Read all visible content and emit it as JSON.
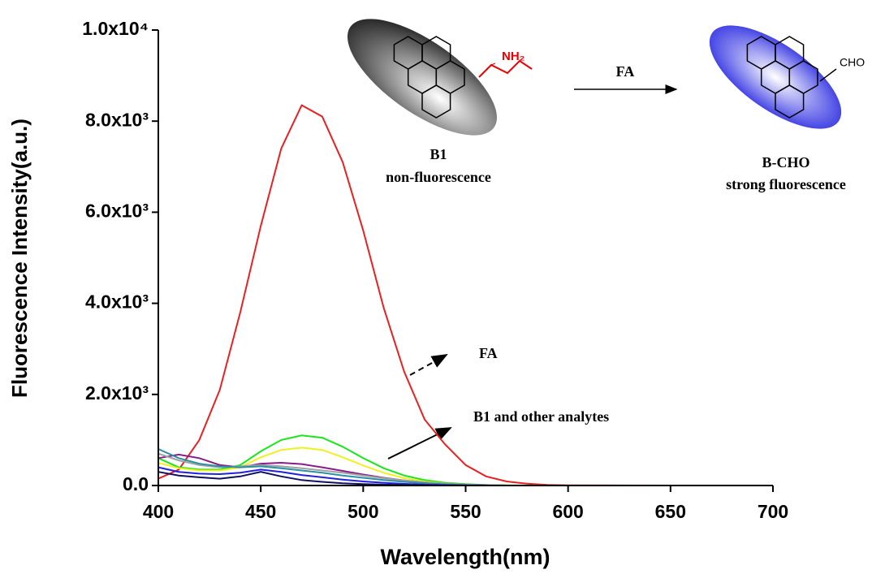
{
  "chart_data": {
    "type": "line",
    "x_label": "Wavelength(nm)",
    "y_label": "Fluorescence Intensity(a.u.)",
    "x": [
      400,
      410,
      420,
      430,
      440,
      450,
      460,
      470,
      480,
      490,
      500,
      510,
      520,
      530,
      540,
      550,
      560,
      570,
      580,
      590,
      600,
      650,
      700
    ],
    "series": [
      {
        "color": "#e8201f",
        "values": [
          150,
          350,
          1000,
          2100,
          3800,
          5700,
          7400,
          8350,
          8100,
          7100,
          5600,
          3900,
          2500,
          1450,
          900,
          450,
          200,
          90,
          40,
          15,
          5,
          0,
          0
        ]
      },
      {
        "color": "#19e619",
        "values": [
          600,
          400,
          350,
          350,
          450,
          750,
          1000,
          1100,
          1050,
          850,
          600,
          380,
          220,
          120,
          60,
          30,
          10,
          5,
          0,
          0,
          0,
          0,
          0
        ]
      },
      {
        "color": "#f0f020",
        "values": [
          500,
          380,
          330,
          330,
          400,
          620,
          780,
          830,
          780,
          620,
          440,
          280,
          160,
          90,
          45,
          20,
          8,
          0,
          0,
          0,
          0,
          0,
          0
        ]
      },
      {
        "color": "#8b1a8b",
        "values": [
          600,
          680,
          600,
          450,
          400,
          480,
          500,
          470,
          400,
          320,
          240,
          170,
          110,
          70,
          40,
          20,
          10,
          0,
          0,
          0,
          0,
          0,
          0
        ]
      },
      {
        "color": "#a0a0a0",
        "values": [
          700,
          550,
          450,
          400,
          420,
          450,
          420,
          380,
          330,
          280,
          220,
          160,
          110,
          70,
          40,
          20,
          10,
          0,
          0,
          0,
          0,
          0,
          0
        ]
      },
      {
        "color": "#2b8fa8",
        "values": [
          800,
          600,
          480,
          420,
          400,
          420,
          380,
          330,
          280,
          220,
          170,
          120,
          80,
          50,
          25,
          10,
          5,
          0,
          0,
          0,
          0,
          0,
          0
        ]
      },
      {
        "color": "#2020e0",
        "values": [
          400,
          300,
          260,
          250,
          280,
          350,
          300,
          230,
          180,
          130,
          90,
          60,
          35,
          20,
          10,
          5,
          0,
          0,
          0,
          0,
          0,
          0,
          0
        ]
      },
      {
        "color": "#101060",
        "values": [
          300,
          220,
          180,
          150,
          200,
          300,
          200,
          120,
          80,
          50,
          30,
          20,
          10,
          5,
          0,
          0,
          0,
          0,
          0,
          0,
          0,
          0,
          0
        ]
      }
    ],
    "xlim": [
      400,
      700
    ],
    "xticks": [
      400,
      450,
      500,
      550,
      600,
      650,
      700
    ],
    "ylim": [
      0,
      10000
    ],
    "yticks": [
      {
        "value": 0,
        "label": "0.0"
      },
      {
        "value": 2000,
        "label": "2.0x10³"
      },
      {
        "value": 4000,
        "label": "4.0x10³"
      },
      {
        "value": 6000,
        "label": "6.0x10³"
      },
      {
        "value": 8000,
        "label": "8.0x10³"
      },
      {
        "value": 10000,
        "label": "1.0x10⁴"
      }
    ],
    "annotations": [
      "FA",
      "B1 and other analytes"
    ],
    "scheme": {
      "reactant": "B1",
      "reactant_note": "non-fluorescence",
      "reactant_group": "NH₂",
      "reagent": "FA",
      "product": "B-CHO",
      "product_note": "strong fluorescence",
      "product_group": "CHO"
    }
  }
}
